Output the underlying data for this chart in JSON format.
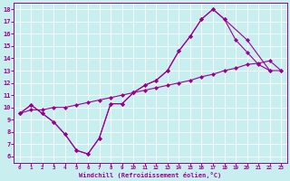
{
  "xlabel": "Windchill (Refroidissement éolien,°C)",
  "bg_color": "#c8eef0",
  "line_color": "#9b008e",
  "grid_color": "#ffffff",
  "xlim": [
    -0.5,
    23.5
  ],
  "ylim": [
    5.5,
    18.5
  ],
  "xticks": [
    0,
    1,
    2,
    3,
    4,
    5,
    6,
    7,
    8,
    9,
    10,
    11,
    12,
    13,
    14,
    15,
    16,
    17,
    18,
    19,
    20,
    21,
    22,
    23
  ],
  "yticks": [
    6,
    7,
    8,
    9,
    10,
    11,
    12,
    13,
    14,
    15,
    16,
    17,
    18
  ],
  "series1_x": [
    0,
    1,
    2,
    3,
    4,
    5,
    6,
    7,
    8,
    9,
    10,
    11,
    12,
    13,
    14,
    15,
    16,
    17,
    18,
    19,
    20,
    21,
    22
  ],
  "series1_y": [
    9.5,
    10.2,
    9.5,
    8.8,
    7.8,
    6.5,
    6.2,
    7.5,
    10.3,
    10.3,
    11.2,
    11.8,
    12.2,
    13.0,
    14.6,
    15.8,
    17.2,
    18.0,
    17.2,
    15.5,
    14.5,
    13.5,
    13.0
  ],
  "series2_x": [
    0,
    1,
    2,
    3,
    4,
    5,
    6,
    7,
    8,
    9,
    10,
    11,
    12,
    13,
    14,
    15,
    16,
    17,
    18,
    19,
    20,
    21,
    22,
    23
  ],
  "series2_y": [
    9.5,
    9.8,
    9.8,
    10.0,
    10.0,
    10.2,
    10.4,
    10.6,
    10.8,
    11.0,
    11.2,
    11.4,
    11.6,
    11.8,
    12.0,
    12.2,
    12.5,
    12.7,
    13.0,
    13.2,
    13.5,
    13.6,
    13.8,
    13.0
  ],
  "series3_x": [
    0,
    1,
    2,
    3,
    4,
    5,
    6,
    7,
    8,
    9,
    10,
    11,
    12,
    13,
    14,
    15,
    16,
    17,
    18,
    20,
    22,
    23
  ],
  "series3_y": [
    9.5,
    10.2,
    9.5,
    8.8,
    7.8,
    6.5,
    6.2,
    7.5,
    10.3,
    10.3,
    11.2,
    11.8,
    12.2,
    13.0,
    14.6,
    15.8,
    17.2,
    18.0,
    17.2,
    15.5,
    13.0,
    13.0
  ]
}
